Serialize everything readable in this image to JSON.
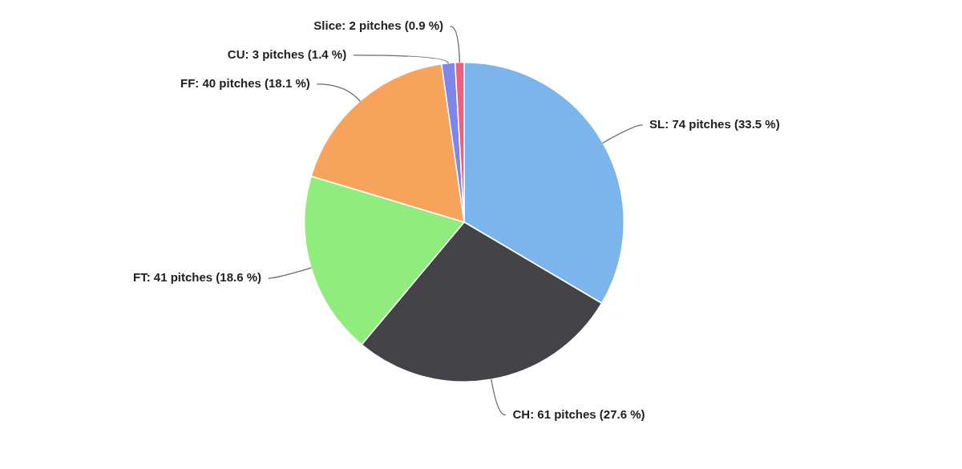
{
  "chart_data": {
    "type": "pie",
    "categories": [
      "SL",
      "CH",
      "FT",
      "FF",
      "CU",
      "Slice"
    ],
    "values": [
      74,
      61,
      41,
      40,
      3,
      2
    ],
    "colors": [
      "#7cb5ec",
      "#434348",
      "#90ed7d",
      "#f7a35c",
      "#8085e9",
      "#f15c80"
    ],
    "value_labels": [
      "74 pitches (33.5 %)",
      "61 pitches (27.6 %)",
      "41 pitches (18.6 %)",
      "40 pitches (18.1 %)",
      "3 pitches (1.4 %)",
      "2 pitches (0.9 %)"
    ]
  }
}
